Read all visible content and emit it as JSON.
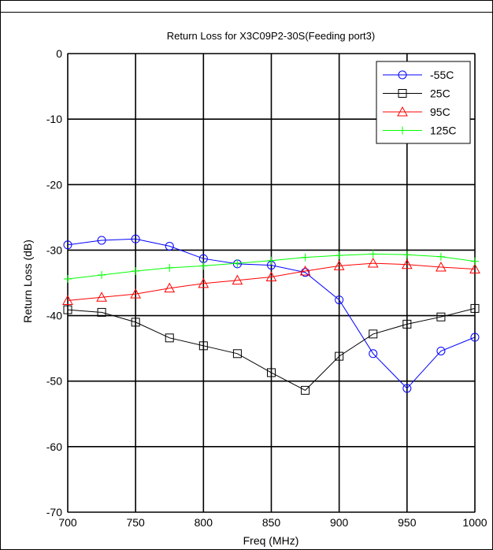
{
  "chart_data": {
    "type": "line",
    "title": "Return Loss for X3C09P2-30S(Feeding port3)",
    "xlabel": "Freq (MHz)",
    "ylabel": "Return Loss (dB)",
    "xlim": [
      700,
      1000
    ],
    "ylim": [
      -70,
      0
    ],
    "xticks": [
      700,
      750,
      800,
      850,
      900,
      950,
      1000
    ],
    "yticks": [
      0,
      -10,
      -20,
      -30,
      -40,
      -50,
      -60,
      -70
    ],
    "grid": true,
    "legend_position": "top-right",
    "x": [
      700,
      725,
      750,
      775,
      800,
      825,
      850,
      875,
      900,
      925,
      950,
      975,
      1000
    ],
    "series": [
      {
        "name": "-55C",
        "color": "#0000ff",
        "marker": "circle",
        "values": [
          -29.2,
          -28.5,
          -28.3,
          -29.4,
          -31.3,
          -32.1,
          -32.3,
          -33.4,
          -37.6,
          -45.8,
          -51.1,
          -45.4,
          -43.3
        ]
      },
      {
        "name": "25C",
        "color": "#000000",
        "marker": "square",
        "values": [
          -39.1,
          -39.5,
          -41.0,
          -43.4,
          -44.6,
          -45.8,
          -48.7,
          -51.4,
          -46.2,
          -42.8,
          -41.3,
          -40.2,
          -38.9
        ]
      },
      {
        "name": "95C",
        "color": "#ff0000",
        "marker": "triangle",
        "values": [
          -37.7,
          -37.2,
          -36.7,
          -35.8,
          -35.1,
          -34.6,
          -34.1,
          -33.2,
          -32.4,
          -32.0,
          -32.2,
          -32.6,
          -32.9
        ]
      },
      {
        "name": "125C",
        "color": "#00ff00",
        "marker": "plus",
        "values": [
          -34.4,
          -33.8,
          -33.2,
          -32.7,
          -32.4,
          -32.0,
          -31.6,
          -31.1,
          -30.8,
          -30.6,
          -30.7,
          -31.0,
          -31.7
        ]
      }
    ]
  }
}
